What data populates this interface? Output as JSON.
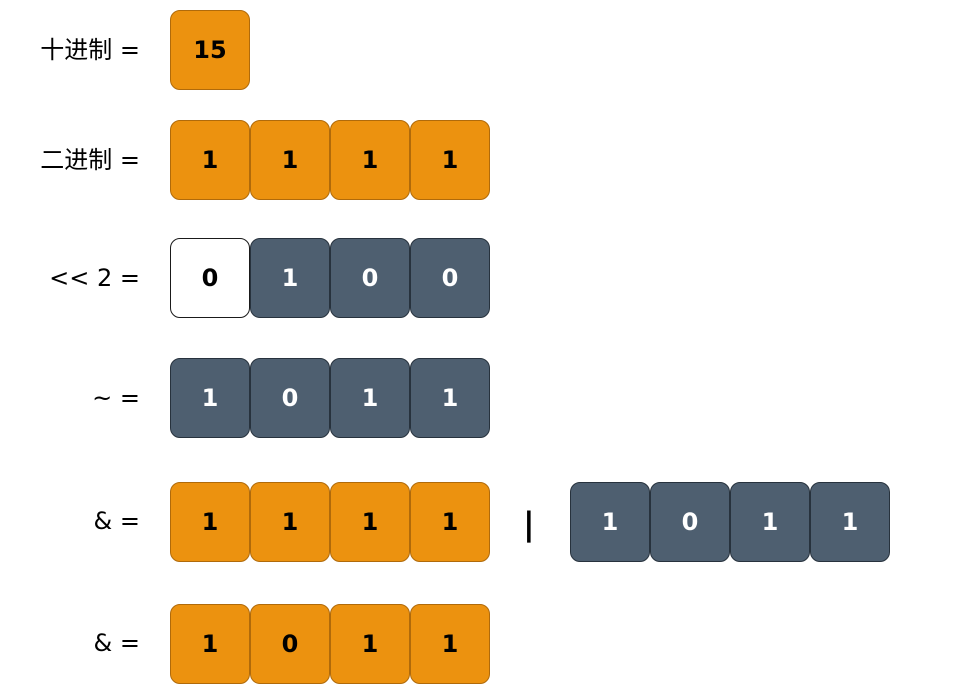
{
  "rows": [
    {
      "label": "十进制 =",
      "groups": [
        [
          {
            "v": "15",
            "c": "orange"
          }
        ]
      ]
    },
    {
      "label": "二进制 =",
      "groups": [
        [
          {
            "v": "1",
            "c": "orange"
          },
          {
            "v": "1",
            "c": "orange"
          },
          {
            "v": "1",
            "c": "orange"
          },
          {
            "v": "1",
            "c": "orange"
          }
        ]
      ]
    },
    {
      "label": "<< 2 =",
      "groups": [
        [
          {
            "v": "0",
            "c": "blank"
          },
          {
            "v": "1",
            "c": "slate"
          },
          {
            "v": "0",
            "c": "slate"
          },
          {
            "v": "0",
            "c": "slate"
          }
        ]
      ]
    },
    {
      "label": "~ =",
      "groups": [
        [
          {
            "v": "1",
            "c": "slate"
          },
          {
            "v": "0",
            "c": "slate"
          },
          {
            "v": "1",
            "c": "slate"
          },
          {
            "v": "1",
            "c": "slate"
          }
        ]
      ]
    },
    {
      "label": "& =",
      "groups": [
        [
          {
            "v": "1",
            "c": "orange"
          },
          {
            "v": "1",
            "c": "orange"
          },
          {
            "v": "1",
            "c": "orange"
          },
          {
            "v": "1",
            "c": "orange"
          }
        ],
        [
          {
            "v": "1",
            "c": "slate"
          },
          {
            "v": "0",
            "c": "slate"
          },
          {
            "v": "1",
            "c": "slate"
          },
          {
            "v": "1",
            "c": "slate"
          }
        ]
      ]
    },
    {
      "label": "& =",
      "groups": [
        [
          {
            "v": "1",
            "c": "orange"
          },
          {
            "v": "0",
            "c": "orange"
          },
          {
            "v": "1",
            "c": "orange"
          },
          {
            "v": "1",
            "c": "orange"
          }
        ]
      ]
    }
  ],
  "operator": "|",
  "colors": {
    "orange": "#ec920f",
    "slate": "#4e5f70",
    "blank": "#ffffff"
  }
}
